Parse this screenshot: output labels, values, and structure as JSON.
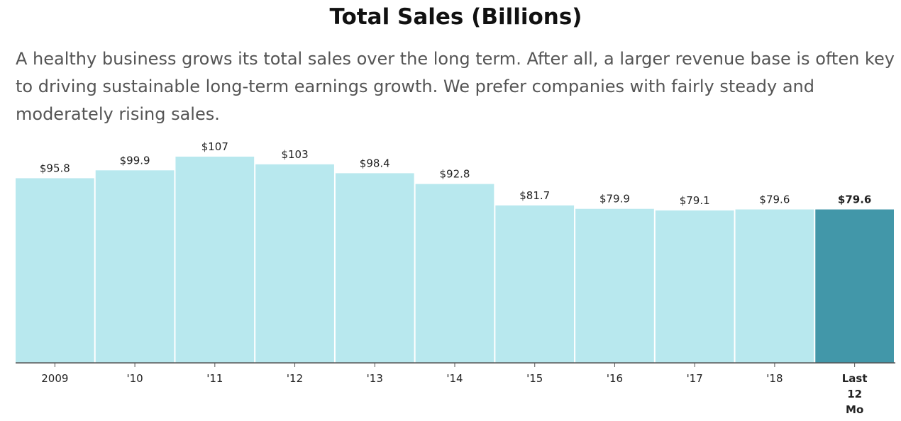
{
  "chart_data": {
    "type": "bar",
    "title": "Total Sales (Billions)",
    "subtitle": "A healthy business grows its total sales over the long term. After all, a larger revenue base is often key to driving sustainable long-term earnings growth. We prefer companies with fairly steady and moderately rising sales.",
    "categories": [
      "2009",
      "'10",
      "'11",
      "'12",
      "'13",
      "'14",
      "'15",
      "'16",
      "'17",
      "'18",
      "Last 12 Mo"
    ],
    "values": [
      95.8,
      99.9,
      107,
      103,
      98.4,
      92.8,
      81.7,
      79.9,
      79.1,
      79.6,
      79.6
    ],
    "value_labels": [
      "$95.8",
      "$99.9",
      "$107",
      "$103",
      "$98.4",
      "$92.8",
      "$81.7",
      "$79.9",
      "$79.1",
      "$79.6",
      "$79.6"
    ],
    "highlight_index": 10,
    "ylim": [
      0,
      107
    ],
    "grid": false,
    "colors": {
      "bar": "#b8e8ee",
      "highlight": "#4297a9",
      "axis": "#555555"
    }
  }
}
